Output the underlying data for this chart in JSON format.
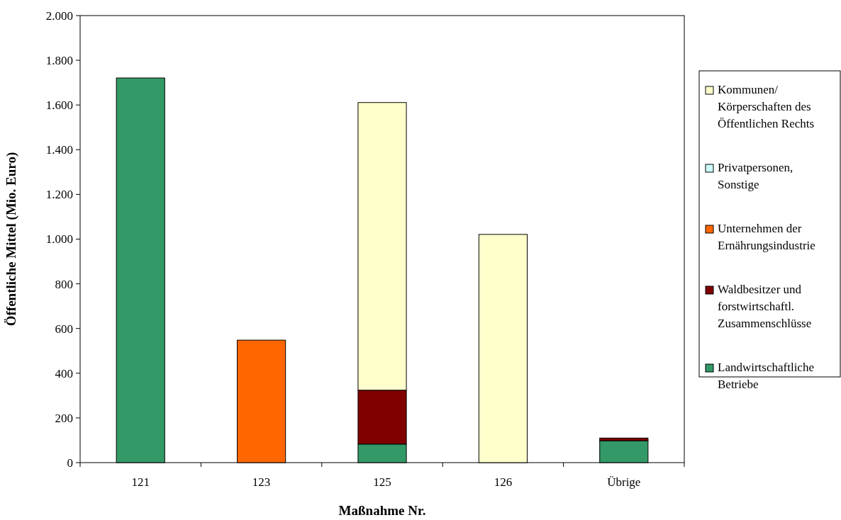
{
  "chart_data": {
    "type": "bar",
    "stacked": true,
    "xlabel": "Maßnahme Nr.",
    "ylabel": "Öffentliche Mittel (Mio. Euro)",
    "categories": [
      "121",
      "123",
      "125",
      "126",
      "Übrige"
    ],
    "series": [
      {
        "name": "Landwirtschaftliche Betriebe",
        "color": "#339966",
        "values": [
          1721,
          0,
          83,
          0,
          98
        ]
      },
      {
        "name": "Waldbesitzer und forstwirtschaftl. Zusammenschlüsse",
        "color": "#800000",
        "values": [
          0,
          0,
          241,
          0,
          12
        ]
      },
      {
        "name": "Unternehmen der Ernährungsindustrie",
        "color": "#ff6600",
        "values": [
          0,
          548,
          0,
          0,
          0
        ]
      },
      {
        "name": "Privatpersonen, Sonstige",
        "color": "#ccffff",
        "values": [
          0,
          0,
          0,
          0,
          0
        ]
      },
      {
        "name": "Kommunen/ Körperschaften des Öffentlichen Rechts",
        "color": "#ffffcc",
        "values": [
          0,
          0,
          1287,
          1021,
          0
        ]
      }
    ],
    "ylim": [
      0,
      2000
    ],
    "yticks": [
      {
        "value": 0,
        "label": "0"
      },
      {
        "value": 200,
        "label": "200"
      },
      {
        "value": 400,
        "label": "400"
      },
      {
        "value": 600,
        "label": "600"
      },
      {
        "value": 800,
        "label": "800"
      },
      {
        "value": 1000,
        "label": "1.000"
      },
      {
        "value": 1200,
        "label": "1.200"
      },
      {
        "value": 1400,
        "label": "1.400"
      },
      {
        "value": 1600,
        "label": "1.600"
      },
      {
        "value": 1800,
        "label": "1.800"
      },
      {
        "value": 2000,
        "label": "2.000"
      }
    ],
    "grid": false,
    "legend": "right"
  }
}
